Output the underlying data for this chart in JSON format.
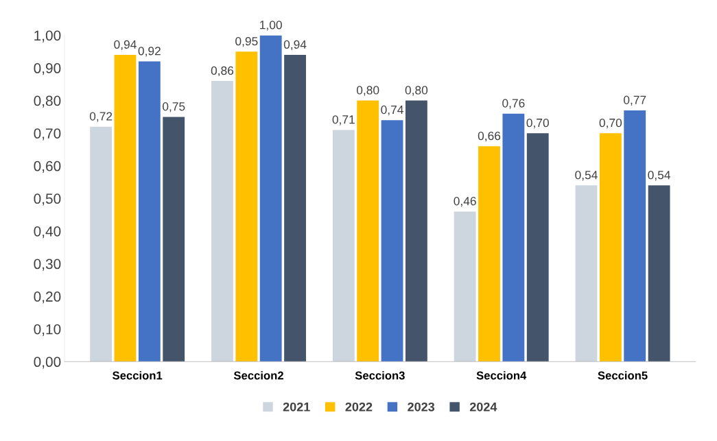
{
  "chart_data": {
    "type": "bar",
    "categories": [
      "Seccion1",
      "Seccion2",
      "Seccion3",
      "Seccion4",
      "Seccion5"
    ],
    "series": [
      {
        "name": "2021",
        "color": "#cdd5df",
        "values": [
          0.72,
          0.86,
          0.71,
          0.46,
          0.54
        ],
        "value_labels": [
          "0,72",
          "0,86",
          "0,71",
          "0,46",
          "0,54"
        ]
      },
      {
        "name": "2022",
        "color": "#ffc000",
        "values": [
          0.94,
          0.95,
          0.8,
          0.66,
          0.7
        ],
        "value_labels": [
          "0,94",
          "0,95",
          "0,80",
          "0,66",
          "0,70"
        ]
      },
      {
        "name": "2023",
        "color": "#4472c4",
        "values": [
          0.92,
          1.0,
          0.74,
          0.76,
          0.77
        ],
        "value_labels": [
          "0,92",
          "1,00",
          "0,74",
          "0,76",
          "0,77"
        ]
      },
      {
        "name": "2024",
        "color": "#44546a",
        "values": [
          0.75,
          0.94,
          0.8,
          0.7,
          0.54
        ],
        "value_labels": [
          "0,75",
          "0,94",
          "0,80",
          "0,70",
          "0,54"
        ]
      }
    ],
    "ylim": [
      0,
      1.0
    ],
    "yticks": [
      {
        "value": 0,
        "label": "0,00"
      },
      {
        "value": 0.1,
        "label": "0,10"
      },
      {
        "value": 0.2,
        "label": "0,20"
      },
      {
        "value": 0.3,
        "label": "0,30"
      },
      {
        "value": 0.4,
        "label": "0,40"
      },
      {
        "value": 0.5,
        "label": "0,50"
      },
      {
        "value": 0.6,
        "label": "0,60"
      },
      {
        "value": 0.7,
        "label": "0,70"
      },
      {
        "value": 0.8,
        "label": "0,80"
      },
      {
        "value": 0.9,
        "label": "0,90"
      },
      {
        "value": 1.0,
        "label": "1,00"
      }
    ],
    "grid": false,
    "legend": "bottom"
  }
}
